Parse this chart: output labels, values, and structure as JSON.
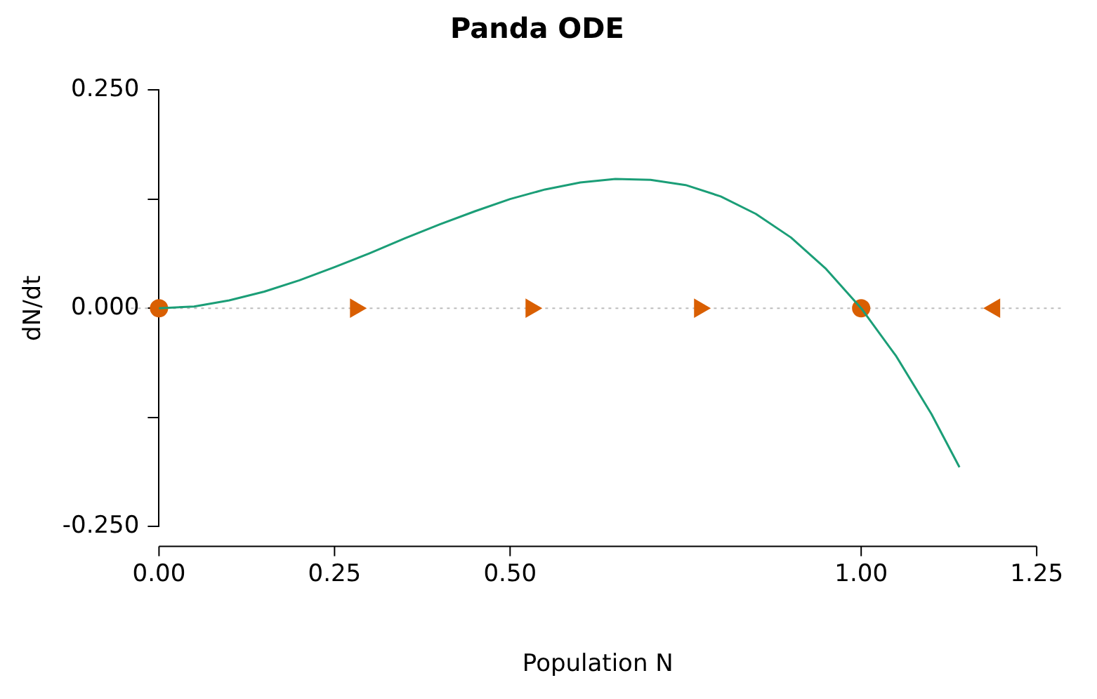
{
  "chart_data": {
    "type": "line",
    "title": "Panda ODE",
    "xlabel": "Population N",
    "ylabel": "dN/dt",
    "xlim": [
      0,
      1.25
    ],
    "ylim": [
      -0.25,
      0.25
    ],
    "xticks": [
      {
        "value": 0,
        "label": "0.00"
      },
      {
        "value": 0.25,
        "label": "0.25"
      },
      {
        "value": 0.5,
        "label": "0.50"
      },
      {
        "value": 1,
        "label": "1.00"
      },
      {
        "value": 1.25,
        "label": "1.25"
      }
    ],
    "yticks": [
      {
        "value": -0.25,
        "label": "-0.250"
      },
      {
        "value": -0.125,
        "label": null
      },
      {
        "value": 0,
        "label": "0.000"
      },
      {
        "value": 0.125,
        "label": null
      },
      {
        "value": 0.25,
        "label": "0.250"
      }
    ],
    "grid": false,
    "legend": false,
    "ref_lines": [
      {
        "axis": "y",
        "value": 0,
        "color": "#bdbdbd",
        "line_style": "dotted"
      }
    ],
    "series": [
      {
        "color": "#1b9e77",
        "marker": "none",
        "line_style": "solid",
        "x": [
          0,
          0.05,
          0.1,
          0.15,
          0.2,
          0.25,
          0.3,
          0.35,
          0.4,
          0.45,
          0.5,
          0.55,
          0.6,
          0.65,
          0.7,
          0.75,
          0.8,
          0.85,
          0.9,
          0.95,
          1.0,
          1.05,
          1.1,
          1.14
        ],
        "values": [
          0,
          0.002,
          0.009,
          0.019,
          0.032,
          0.047,
          0.063,
          0.08,
          0.096,
          0.111,
          0.125,
          0.136,
          0.144,
          0.148,
          0.147,
          0.141,
          0.128,
          0.108,
          0.081,
          0.045,
          0,
          -0.055,
          -0.121,
          -0.182
        ]
      },
      {
        "type": "scatter",
        "color": "#d95f02",
        "marker": "circle",
        "x": [
          0,
          1
        ],
        "values": [
          0,
          0
        ]
      },
      {
        "type": "scatter",
        "color": "#d95f02",
        "marker": "triangle",
        "x": [
          0.28,
          0.53,
          0.77,
          1.19
        ],
        "values": [
          0,
          0,
          0,
          0
        ]
      }
    ]
  }
}
